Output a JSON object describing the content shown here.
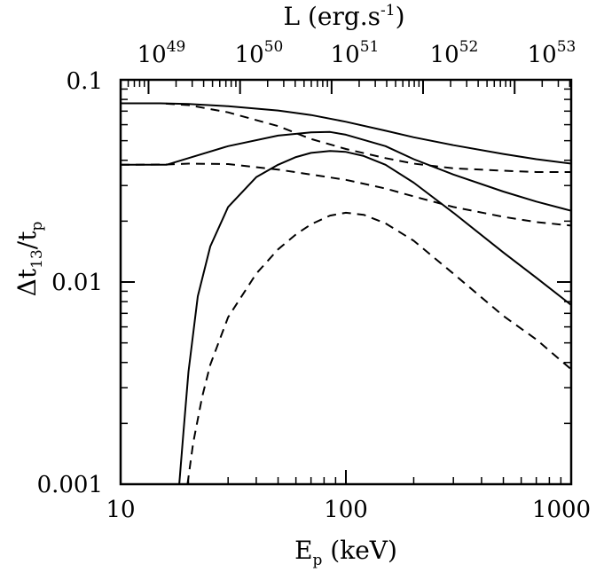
{
  "chart_data": {
    "type": "line",
    "title": "",
    "xlabel": {
      "main": "E",
      "sub": "p",
      "unit": " (keV)"
    },
    "ylabel": {
      "main": "Δt",
      "sub1": "13",
      "mid": "/t",
      "sub2": "p"
    },
    "top_axis_label": {
      "main": "L (erg.s",
      "sup": "-1",
      "end": ")"
    },
    "x_scale": "log",
    "y_scale": "log",
    "xlim": [
      10,
      1000
    ],
    "ylim": [
      0.001,
      0.1
    ],
    "x_ticks": [
      {
        "value": 10,
        "label": "10"
      },
      {
        "value": 100,
        "label": "100"
      },
      {
        "value": 1000,
        "label": "1000"
      }
    ],
    "y_ticks": [
      {
        "value": 0.1,
        "label": "0.1"
      },
      {
        "value": 0.01,
        "label": "0.01"
      },
      {
        "value": 0.001,
        "label": "0.001"
      }
    ],
    "top_ticks": [
      {
        "base": "10",
        "exp": "49",
        "at_ep": 13.3
      },
      {
        "base": "10",
        "exp": "50",
        "at_ep": 33.9
      },
      {
        "base": "10",
        "exp": "51",
        "at_ep": 86.4
      },
      {
        "base": "10",
        "exp": "52",
        "at_ep": 220
      },
      {
        "base": "10",
        "exp": "53",
        "at_ep": 561
      }
    ],
    "grid": false,
    "legend": "none",
    "series": [
      {
        "style": "solid",
        "color": "#000000",
        "points": [
          [
            10,
            0.0765
          ],
          [
            15,
            0.0765
          ],
          [
            20,
            0.076
          ],
          [
            30,
            0.074
          ],
          [
            50,
            0.0705
          ],
          [
            70,
            0.067
          ],
          [
            100,
            0.062
          ],
          [
            150,
            0.056
          ],
          [
            200,
            0.052
          ],
          [
            300,
            0.0475
          ],
          [
            500,
            0.043
          ],
          [
            700,
            0.0405
          ],
          [
            1000,
            0.0385
          ]
        ]
      },
      {
        "style": "solid",
        "color": "#000000",
        "points": [
          [
            10,
            0.038
          ],
          [
            16,
            0.038
          ],
          [
            20,
            0.041
          ],
          [
            30,
            0.047
          ],
          [
            50,
            0.053
          ],
          [
            70,
            0.055
          ],
          [
            85,
            0.0552
          ],
          [
            100,
            0.0535
          ],
          [
            150,
            0.047
          ],
          [
            200,
            0.0405
          ],
          [
            300,
            0.034
          ],
          [
            500,
            0.028
          ],
          [
            700,
            0.025
          ],
          [
            1000,
            0.0225
          ]
        ]
      },
      {
        "style": "solid",
        "color": "#000000",
        "points": [
          [
            18.2,
            0.001
          ],
          [
            19,
            0.0018
          ],
          [
            20,
            0.0036
          ],
          [
            22,
            0.0085
          ],
          [
            25,
            0.015
          ],
          [
            30,
            0.0235
          ],
          [
            40,
            0.033
          ],
          [
            50,
            0.038
          ],
          [
            60,
            0.0415
          ],
          [
            70,
            0.0435
          ],
          [
            85,
            0.0445
          ],
          [
            100,
            0.044
          ],
          [
            120,
            0.042
          ],
          [
            150,
            0.038
          ],
          [
            200,
            0.031
          ],
          [
            300,
            0.022
          ],
          [
            500,
            0.014
          ],
          [
            700,
            0.0105
          ],
          [
            1000,
            0.0077
          ]
        ]
      },
      {
        "style": "dashed",
        "color": "#000000",
        "points": [
          [
            10,
            0.0765
          ],
          [
            15,
            0.0765
          ],
          [
            20,
            0.075
          ],
          [
            30,
            0.069
          ],
          [
            50,
            0.059
          ],
          [
            70,
            0.051
          ],
          [
            100,
            0.0455
          ],
          [
            150,
            0.041
          ],
          [
            200,
            0.0385
          ],
          [
            300,
            0.0365
          ],
          [
            500,
            0.0355
          ],
          [
            700,
            0.035
          ],
          [
            1000,
            0.035
          ]
        ]
      },
      {
        "style": "dashed",
        "color": "#000000",
        "points": [
          [
            10,
            0.038
          ],
          [
            16,
            0.0381
          ],
          [
            20,
            0.0385
          ],
          [
            30,
            0.0383
          ],
          [
            50,
            0.036
          ],
          [
            70,
            0.034
          ],
          [
            100,
            0.032
          ],
          [
            150,
            0.029
          ],
          [
            200,
            0.0265
          ],
          [
            300,
            0.0235
          ],
          [
            500,
            0.021
          ],
          [
            700,
            0.0198
          ],
          [
            1000,
            0.019
          ]
        ]
      },
      {
        "style": "dashed",
        "color": "#000000",
        "points": [
          [
            19.8,
            0.001
          ],
          [
            21,
            0.0016
          ],
          [
            23,
            0.0027
          ],
          [
            25,
            0.0039
          ],
          [
            30,
            0.0067
          ],
          [
            40,
            0.011
          ],
          [
            50,
            0.0145
          ],
          [
            60,
            0.0172
          ],
          [
            70,
            0.0193
          ],
          [
            85,
            0.0213
          ],
          [
            100,
            0.022
          ],
          [
            120,
            0.0215
          ],
          [
            150,
            0.0195
          ],
          [
            200,
            0.016
          ],
          [
            300,
            0.011
          ],
          [
            500,
            0.0068
          ],
          [
            700,
            0.0052
          ],
          [
            1000,
            0.0037
          ]
        ]
      }
    ]
  }
}
